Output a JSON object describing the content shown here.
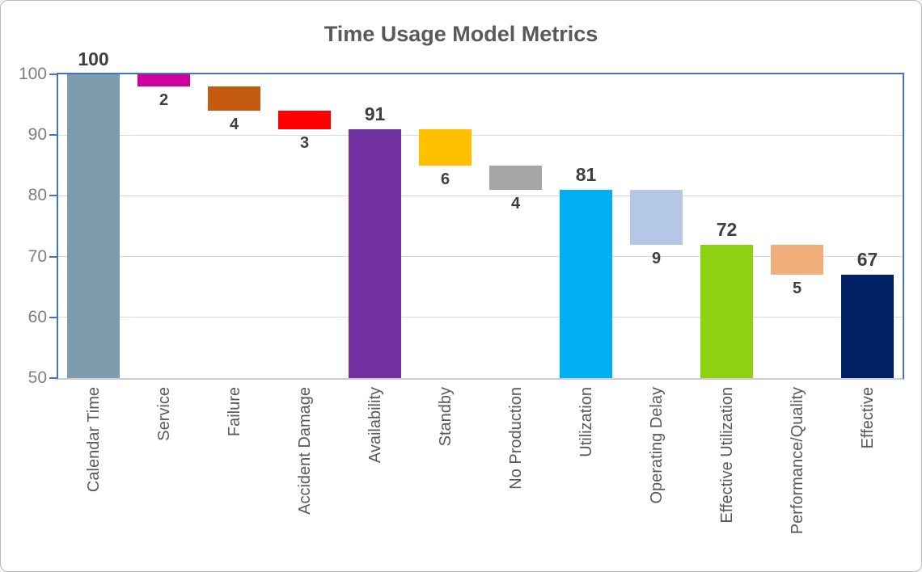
{
  "chart_data": {
    "type": "bar",
    "subtype": "waterfall",
    "title": "Time Usage Model Metrics",
    "ylim": [
      50,
      100
    ],
    "yticks": [
      50,
      60,
      70,
      80,
      90,
      100
    ],
    "grid": true,
    "legend": "none",
    "categories": [
      "Calendar Time",
      "Service",
      "Failure",
      "Accident Damage",
      "Availability",
      "Standby",
      "No Production",
      "Utilization",
      "Operating Delay",
      "Effective Utilization",
      "Performance/Quality",
      "Effective"
    ],
    "bars": [
      {
        "category": "Calendar Time",
        "from": 50,
        "to": 100,
        "value": 100,
        "label": "100",
        "label_position": "above",
        "role": "total",
        "color": "#7e9cad"
      },
      {
        "category": "Service",
        "from": 98,
        "to": 100,
        "value": 2,
        "label": "2",
        "label_position": "below",
        "role": "decrease",
        "color": "#d0009b"
      },
      {
        "category": "Failure",
        "from": 94,
        "to": 98,
        "value": 4,
        "label": "4",
        "label_position": "below",
        "role": "decrease",
        "color": "#c55a11"
      },
      {
        "category": "Accident Damage",
        "from": 91,
        "to": 94,
        "value": 3,
        "label": "3",
        "label_position": "below",
        "role": "decrease",
        "color": "#ff0000"
      },
      {
        "category": "Availability",
        "from": 50,
        "to": 91,
        "value": 91,
        "label": "91",
        "label_position": "above",
        "role": "total",
        "color": "#7030a0"
      },
      {
        "category": "Standby",
        "from": 85,
        "to": 91,
        "value": 6,
        "label": "6",
        "label_position": "below",
        "role": "decrease",
        "color": "#ffc000"
      },
      {
        "category": "No Production",
        "from": 81,
        "to": 85,
        "value": 4,
        "label": "4",
        "label_position": "below",
        "role": "decrease",
        "color": "#a6a6a6"
      },
      {
        "category": "Utilization",
        "from": 50,
        "to": 81,
        "value": 81,
        "label": "81",
        "label_position": "above",
        "role": "total",
        "color": "#00b0f0"
      },
      {
        "category": "Operating Delay",
        "from": 72,
        "to": 81,
        "value": 9,
        "label": "9",
        "label_position": "below",
        "role": "decrease",
        "color": "#b4c7e7"
      },
      {
        "category": "Effective Utilization",
        "from": 50,
        "to": 72,
        "value": 72,
        "label": "72",
        "label_position": "above",
        "role": "total",
        "color": "#8dd114"
      },
      {
        "category": "Performance/Quality",
        "from": 67,
        "to": 72,
        "value": 5,
        "label": "5",
        "label_position": "below",
        "role": "decrease",
        "color": "#f3ae7e"
      },
      {
        "category": "Effective",
        "from": 50,
        "to": 67,
        "value": 67,
        "label": "67",
        "label_position": "above",
        "role": "total",
        "color": "#012164"
      }
    ],
    "colors": {
      "axis": "#4472c4",
      "gridline": "#d9d9d9",
      "baseline": "#cdcdcd",
      "title_text": "#595959",
      "value_label_text": "#3f3f3f",
      "tick_label_text": "#7f7f7f",
      "category_label_text": "#595959",
      "background": "#ffffff",
      "frame_border": "#bcbcbc"
    }
  }
}
